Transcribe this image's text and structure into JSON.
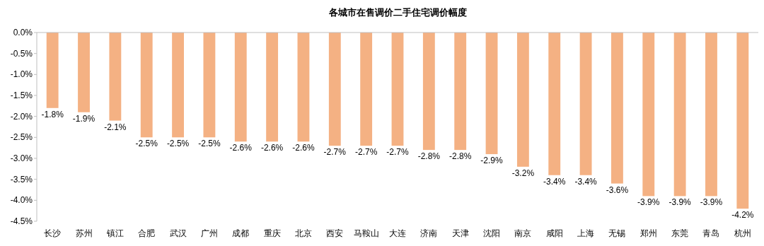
{
  "chart_data": {
    "type": "bar",
    "title": "各城市在售调价二手住宅调价幅度",
    "categories": [
      "长沙",
      "苏州",
      "镇江",
      "合肥",
      "武汉",
      "广州",
      "成都",
      "重庆",
      "北京",
      "西安",
      "马鞍山",
      "大连",
      "济南",
      "天津",
      "沈阳",
      "南京",
      "咸阳",
      "上海",
      "无锡",
      "郑州",
      "东莞",
      "青岛",
      "杭州"
    ],
    "values": [
      -1.8,
      -1.9,
      -2.1,
      -2.5,
      -2.5,
      -2.5,
      -2.6,
      -2.6,
      -2.6,
      -2.7,
      -2.7,
      -2.7,
      -2.8,
      -2.8,
      -2.9,
      -3.2,
      -3.4,
      -3.4,
      -3.6,
      -3.9,
      -3.9,
      -3.9,
      -4.2
    ],
    "value_labels": [
      "-1.8%",
      "-1.9%",
      "-2.1%",
      "-2.5%",
      "-2.5%",
      "-2.5%",
      "-2.6%",
      "-2.6%",
      "-2.6%",
      "-2.7%",
      "-2.7%",
      "-2.7%",
      "-2.8%",
      "-2.8%",
      "-2.9%",
      "-3.2%",
      "-3.4%",
      "-3.4%",
      "-3.6%",
      "-3.9%",
      "-3.9%",
      "-3.9%",
      "-4.2%"
    ],
    "color": "#f4b183",
    "ylim": [
      -4.5,
      0
    ],
    "yticks": [
      {
        "value": 0,
        "label": "0.0%"
      },
      {
        "value": -0.5,
        "label": "-0.5%"
      },
      {
        "value": -1,
        "label": "-1.0%"
      },
      {
        "value": -1.5,
        "label": "-1.5%"
      },
      {
        "value": -2,
        "label": "-2.0%"
      },
      {
        "value": -2.5,
        "label": "-2.5%"
      },
      {
        "value": -3,
        "label": "-3.0%"
      },
      {
        "value": -3.5,
        "label": "-3.5%"
      },
      {
        "value": -4,
        "label": "-4.0%"
      },
      {
        "value": -4.5,
        "label": "-4.5%"
      }
    ]
  }
}
